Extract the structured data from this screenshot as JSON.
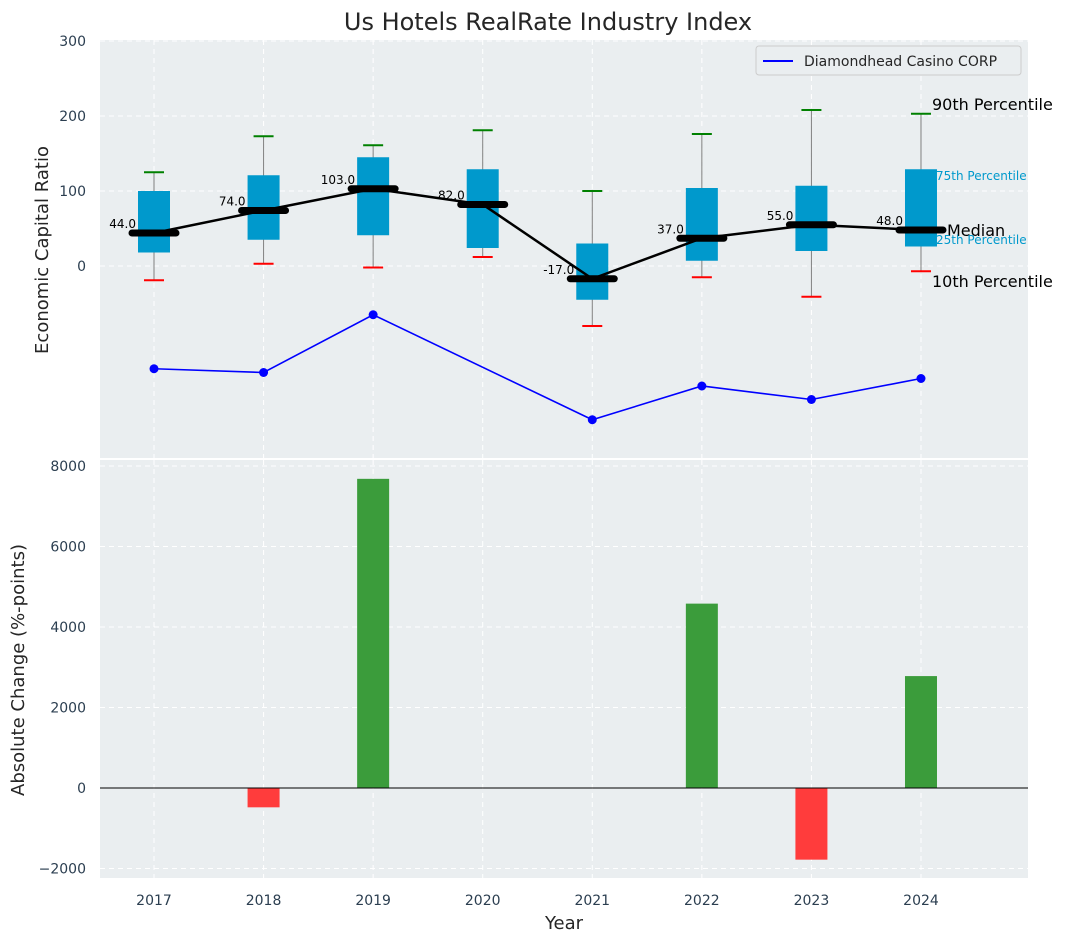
{
  "chart_data": [
    {
      "type": "box",
      "title": "Us Hotels RealRate Industry Index",
      "xlabel": "",
      "ylabel": "Economic Capital Ratio",
      "ylim": [
        -245,
        300
      ],
      "yticks": [
        0,
        100,
        200,
        300
      ],
      "categories": [
        "2017",
        "2018",
        "2019",
        "2020",
        "2021",
        "2022",
        "2023",
        "2024"
      ],
      "x": [
        2017,
        2018,
        2019,
        2020,
        2021,
        2022,
        2023,
        2024
      ],
      "p10": [
        -19,
        3,
        -2,
        12,
        -80,
        -15,
        -41,
        -7
      ],
      "p25": [
        18,
        35,
        41,
        24,
        -45,
        7,
        20,
        26
      ],
      "median": [
        44,
        74,
        103,
        82,
        -17,
        37,
        55,
        48
      ],
      "p75": [
        100,
        121,
        145,
        129,
        30,
        104,
        107,
        129
      ],
      "p90": [
        125,
        173,
        161,
        181,
        100,
        176,
        208,
        203
      ],
      "median_labels": [
        "44.0",
        "74.0",
        "103.0",
        "82.0",
        "-17.0",
        "37.0",
        "55.0",
        "48.0"
      ],
      "company_series": {
        "name": "Diamondhead Casino CORP",
        "values": [
          -137,
          -142,
          -65,
          null,
          -205,
          -160,
          -178,
          -150
        ]
      },
      "legend": {
        "entries": [
          "Diamondhead Casino CORP"
        ],
        "placement": "top-right"
      },
      "annotations": {
        "p90": "90th Percentile",
        "p75": "75th Percentile",
        "median": "Median",
        "p25": "25th Percentile",
        "p10": "10th Percentile"
      },
      "grid": true
    },
    {
      "type": "bar",
      "xlabel": "Year",
      "ylabel": "Absolute Change (%-points)",
      "ylim": [
        -2200,
        8200
      ],
      "yticks": [
        -2000,
        0,
        2000,
        4000,
        6000,
        8000
      ],
      "ytick_labels": [
        "−2000",
        "0",
        "2000",
        "4000",
        "6000",
        "8000"
      ],
      "categories": [
        "2017",
        "2018",
        "2019",
        "2020",
        "2021",
        "2022",
        "2023",
        "2024"
      ],
      "values": [
        0,
        -480,
        7680,
        0,
        0,
        4580,
        -1780,
        2780
      ],
      "grid": true
    }
  ],
  "colors": {
    "plot_bg": "#eaeef0",
    "box": "#0099cc",
    "median_line": "#000000",
    "company_line": "#0000ff",
    "p90_cap": "#008000",
    "p10_cap": "#ff0000",
    "pos_bar": "#3b9c3b",
    "neg_bar": "#ff3c3c",
    "tick_text": "#2b3e50",
    "label_blue": "#0099cc"
  }
}
